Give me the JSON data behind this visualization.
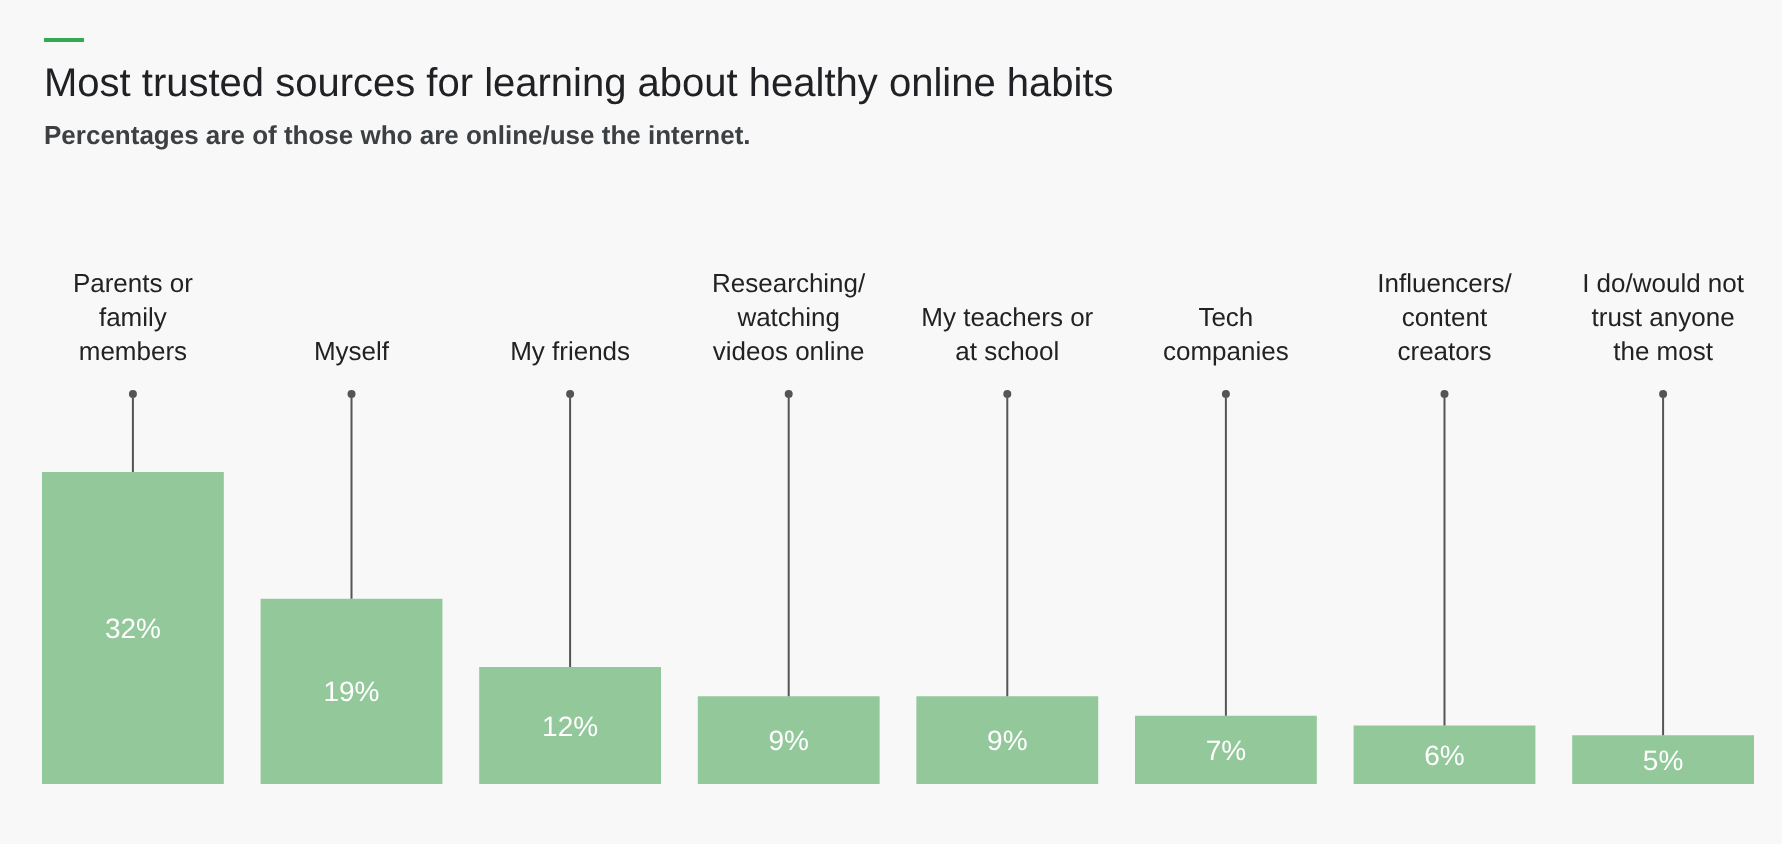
{
  "chart_data": {
    "type": "bar",
    "title": "Most trusted sources for learning about healthy online habits",
    "subtitle": "Percentages are of those who are online/use the internet.",
    "categories": [
      "Parents or family members",
      "Myself",
      "My friends",
      "Researching/ watching videos online",
      "My teachers or at school",
      "Tech companies",
      "Influencers/ content creators",
      "I do/would not trust anyone the most"
    ],
    "values": [
      32,
      19,
      12,
      9,
      9,
      7,
      6,
      5
    ],
    "color": "#93c89a",
    "ylim": [
      0,
      32
    ],
    "value_labels": [
      "32%",
      "19%",
      "12%",
      "9%",
      "9%",
      "7%",
      "6%",
      "5%"
    ]
  }
}
